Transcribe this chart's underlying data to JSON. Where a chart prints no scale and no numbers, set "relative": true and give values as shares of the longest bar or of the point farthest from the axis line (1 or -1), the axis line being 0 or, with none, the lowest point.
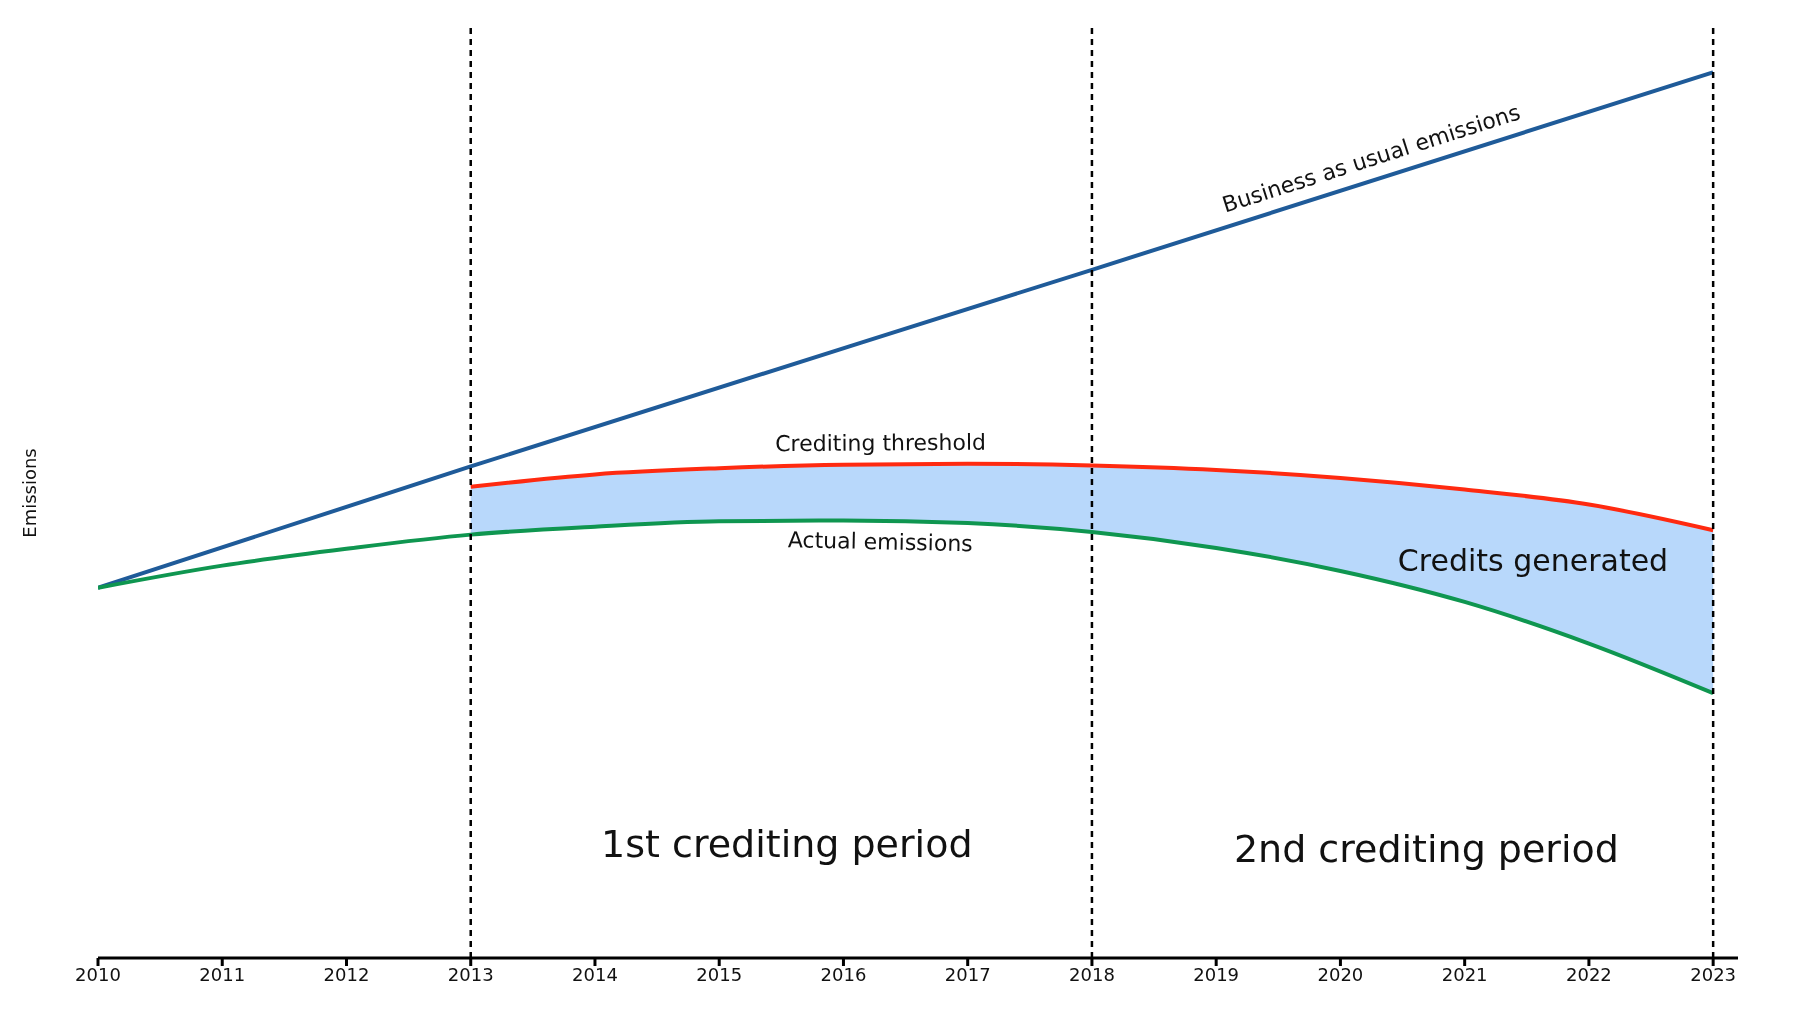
{
  "chart_data": {
    "type": "line",
    "relative": true,
    "ylabel": "Emissions",
    "x": [
      2010,
      2011,
      2012,
      2013,
      2014,
      2015,
      2016,
      2017,
      2018,
      2019,
      2020,
      2021,
      2022,
      2023
    ],
    "xlim": [
      2010,
      2023.2
    ],
    "xticks": [
      2010,
      2011,
      2012,
      2013,
      2014,
      2015,
      2016,
      2017,
      2018,
      2019,
      2020,
      2021,
      2022,
      2023
    ],
    "series": [
      {
        "name": "Business as usual emissions",
        "color": "#1f5b99",
        "values": [
          0.418,
          null,
          null,
          0.555,
          null,
          null,
          null,
          null,
          0.777,
          null,
          null,
          null,
          null,
          1
        ]
      },
      {
        "name": "Crediting threshold",
        "color": "#ff2a10",
        "values": [
          null,
          null,
          null,
          0.532,
          0.546,
          0.553,
          0.557,
          0.558,
          0.556,
          0.551,
          0.542,
          0.529,
          0.512,
          0.483
        ],
        "lower": [
          null,
          null,
          null,
          0.478,
          0.487,
          0.493,
          0.494,
          0.491,
          0.481,
          0.463,
          0.437,
          0.402,
          0.355,
          0.299
        ],
        "upper": [
          null,
          null,
          null,
          0.532,
          0.546,
          0.553,
          0.557,
          0.558,
          0.556,
          0.551,
          0.542,
          0.529,
          0.512,
          0.483
        ]
      },
      {
        "name": "Actual emissions",
        "color": "#0f9650",
        "values": [
          0.418,
          0.443,
          0.462,
          0.478,
          0.487,
          0.493,
          0.494,
          0.491,
          0.481,
          0.463,
          0.437,
          0.402,
          0.355,
          0.299
        ]
      }
    ],
    "ref_lines": [
      {
        "axis": "x",
        "value": 2013,
        "color": "#000000",
        "line_style": "dashed"
      },
      {
        "axis": "x",
        "value": 2018,
        "color": "#000000",
        "line_style": "dashed"
      },
      {
        "axis": "x",
        "value": 2023,
        "color": "#000000",
        "line_style": "dashed"
      }
    ],
    "annotations": [
      "1st crediting period",
      "2nd crediting period",
      "Credits generated"
    ]
  }
}
